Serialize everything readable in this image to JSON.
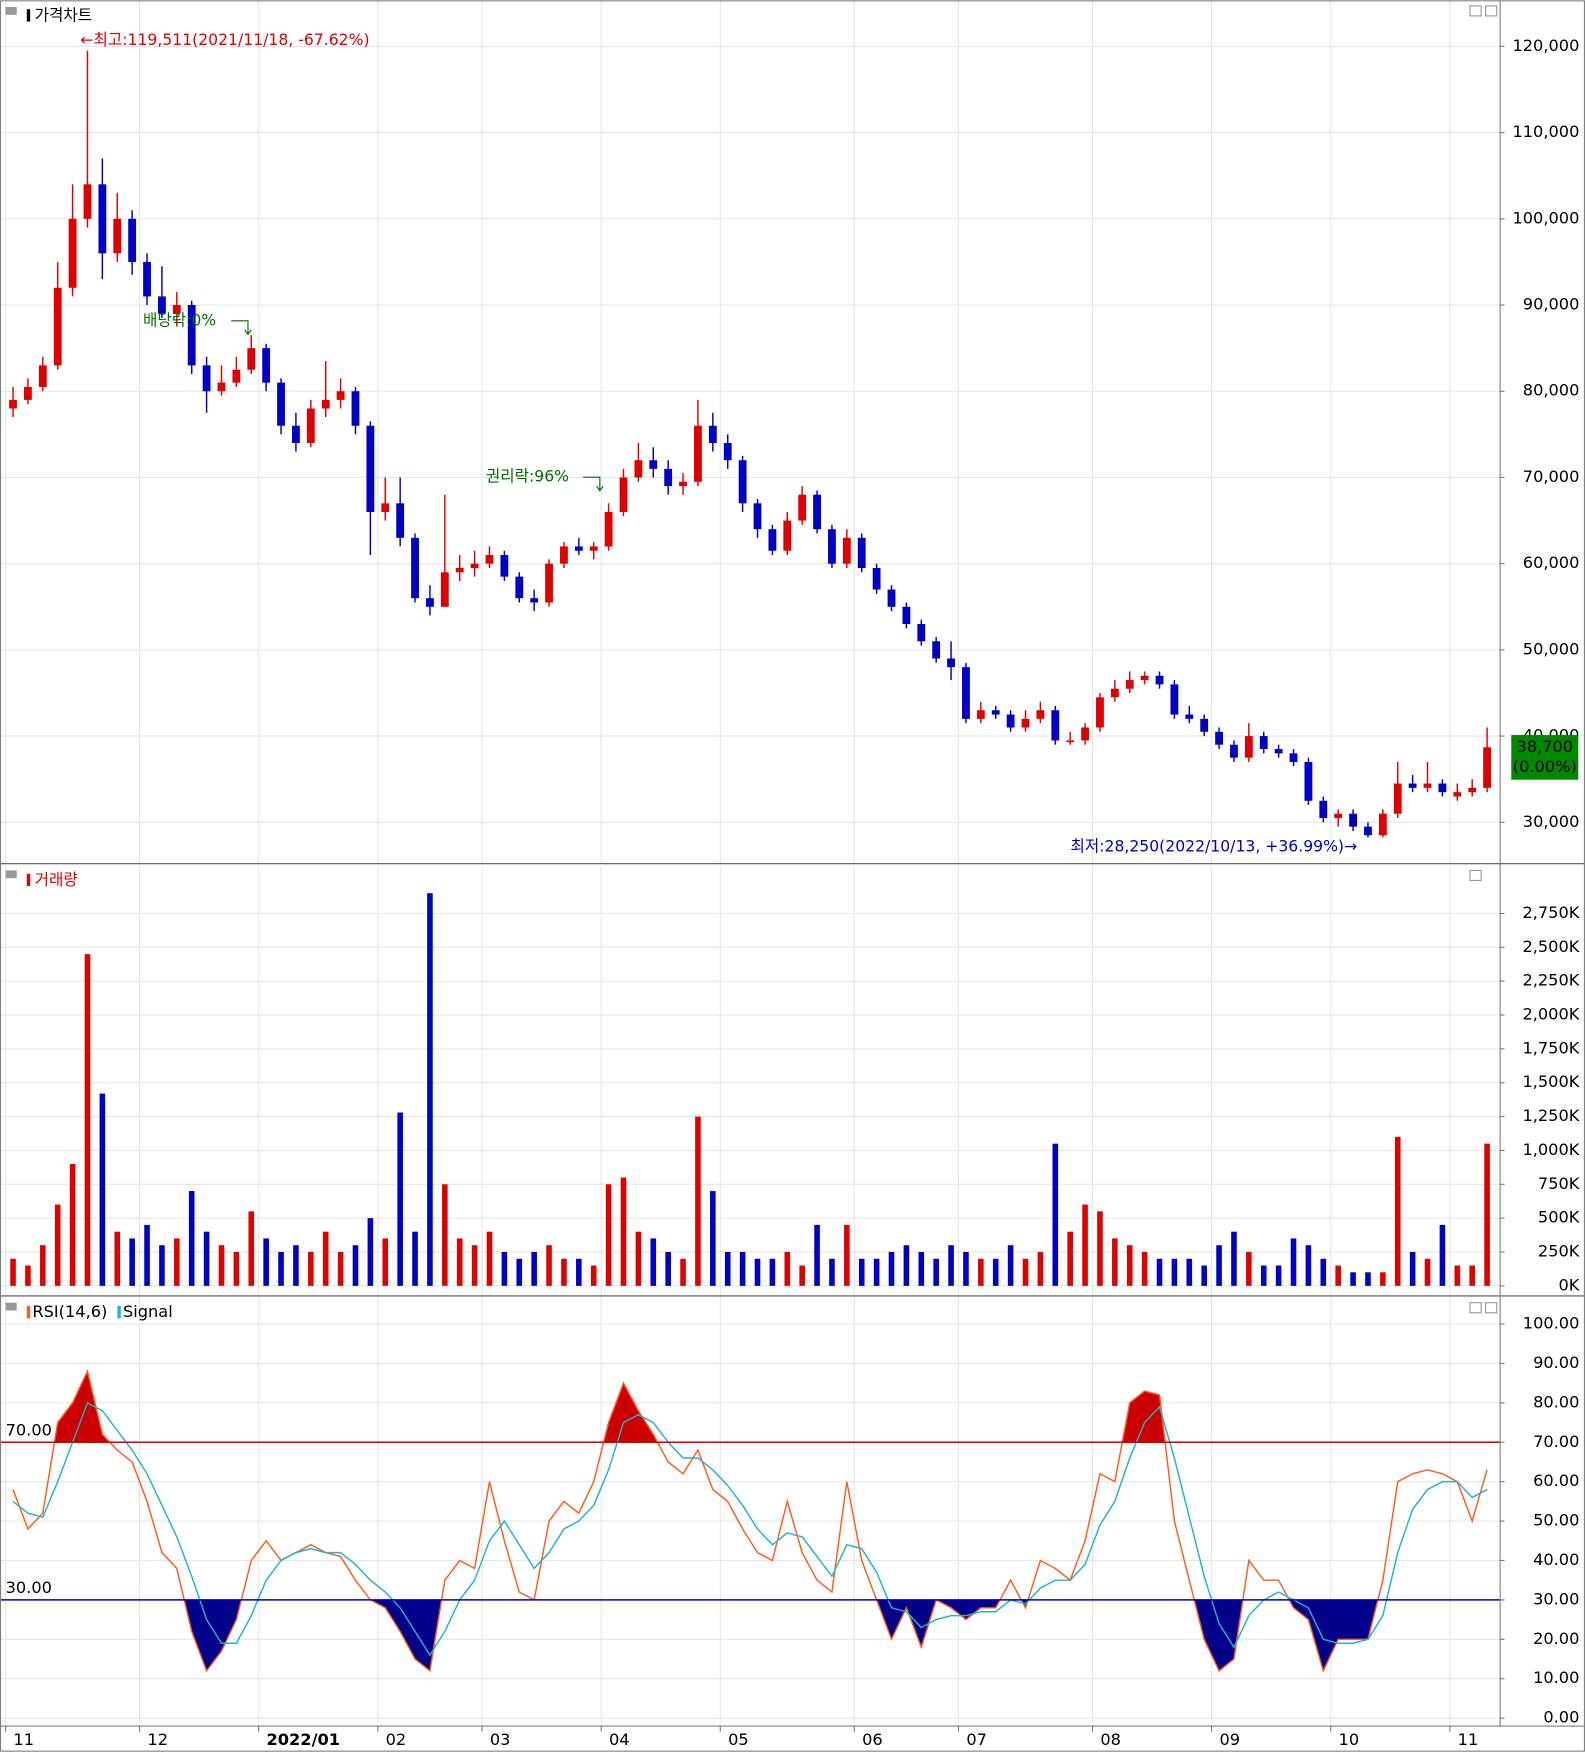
{
  "chart_data": [
    {
      "type": "candlestick",
      "title": "가격차트",
      "open": [
        78000,
        79000,
        80500,
        83000,
        92000,
        100000,
        104000,
        96000,
        100000,
        95000,
        91000,
        89000,
        90000,
        83000,
        80000,
        81000,
        82500,
        85000,
        81000,
        76000,
        74000,
        78000,
        79000,
        80000,
        76000,
        66000,
        67000,
        63000,
        56000,
        55000,
        59000,
        59500,
        60000,
        61000,
        58500,
        56000,
        55500,
        60000,
        62000,
        61500,
        62000,
        66000,
        70000,
        72000,
        71000,
        69000,
        69500,
        76000,
        74000,
        72000,
        67000,
        64000,
        61500,
        65000,
        68000,
        64000,
        60000,
        63000,
        59500,
        57000,
        55000,
        53000,
        51000,
        49000,
        48000,
        42000,
        43000,
        42500,
        41000,
        42000,
        43000,
        39500,
        39500,
        41000,
        44500,
        45500,
        46500,
        47000,
        46000,
        42500,
        42000,
        40500,
        39000,
        37500,
        40000,
        38500,
        38000,
        37000,
        32500,
        30500,
        31000,
        29500,
        28500,
        31000,
        34500,
        34000,
        34500,
        33000,
        33500,
        34000
      ],
      "high": [
        80500,
        81500,
        84000,
        95000,
        104000,
        119511,
        107000,
        103000,
        101000,
        96000,
        94500,
        91500,
        90500,
        84000,
        83000,
        84000,
        86500,
        85500,
        81500,
        77500,
        79000,
        83500,
        81500,
        80500,
        76500,
        70000,
        70000,
        63500,
        57500,
        68000,
        61000,
        61500,
        62000,
        61500,
        59000,
        57000,
        60500,
        62500,
        63000,
        62500,
        67000,
        71000,
        74000,
        73500,
        72000,
        70500,
        79000,
        77500,
        75000,
        72500,
        67500,
        64500,
        66000,
        69000,
        68500,
        64500,
        64000,
        63500,
        60000,
        57500,
        55500,
        53500,
        51500,
        51000,
        48500,
        44000,
        43500,
        43000,
        43000,
        44000,
        43500,
        40500,
        41500,
        45000,
        46500,
        47500,
        47500,
        47500,
        46500,
        43500,
        42500,
        41000,
        39500,
        41500,
        40500,
        39000,
        38500,
        37500,
        33000,
        31500,
        31500,
        30000,
        31500,
        37000,
        35500,
        37000,
        35000,
        34500,
        35000,
        41000
      ],
      "low": [
        77000,
        78500,
        80000,
        82500,
        91000,
        99000,
        93000,
        95000,
        93500,
        90000,
        88500,
        87500,
        82000,
        77500,
        79500,
        80500,
        82000,
        80000,
        75000,
        73000,
        73500,
        77000,
        78000,
        75000,
        61000,
        65000,
        62000,
        55500,
        54000,
        55000,
        58000,
        58500,
        59500,
        58000,
        55500,
        54500,
        55000,
        59500,
        61000,
        60500,
        61500,
        65500,
        69500,
        70000,
        68000,
        68000,
        69000,
        73000,
        71000,
        66000,
        63000,
        61000,
        61000,
        64500,
        63500,
        59500,
        59500,
        59000,
        56500,
        54500,
        52500,
        50500,
        48500,
        46500,
        41500,
        41500,
        42000,
        40500,
        40500,
        41500,
        39000,
        39000,
        39000,
        40500,
        44000,
        45000,
        46000,
        45500,
        42000,
        41500,
        40000,
        38500,
        37000,
        37000,
        38000,
        37500,
        36500,
        32000,
        30000,
        29500,
        29000,
        28250,
        28250,
        30500,
        33500,
        33500,
        33000,
        32500,
        33000,
        33500
      ],
      "close": [
        79000,
        80500,
        83000,
        92000,
        100000,
        104000,
        96000,
        100000,
        95000,
        91000,
        89000,
        90000,
        83000,
        80000,
        81000,
        82500,
        85000,
        81000,
        76000,
        74000,
        78000,
        79000,
        80000,
        76000,
        66000,
        67000,
        63000,
        56000,
        55000,
        59000,
        59500,
        60000,
        61000,
        58500,
        56000,
        55500,
        60000,
        62000,
        61500,
        62000,
        66000,
        70000,
        72000,
        71000,
        69000,
        69500,
        76000,
        74000,
        72000,
        67000,
        64000,
        61500,
        65000,
        68000,
        64000,
        60000,
        63000,
        59500,
        57000,
        55000,
        53000,
        51000,
        49000,
        48000,
        42000,
        43000,
        42500,
        41000,
        42000,
        43000,
        39500,
        39500,
        41000,
        44500,
        45500,
        46500,
        47000,
        46000,
        42500,
        42000,
        40500,
        39000,
        37500,
        40000,
        38500,
        38000,
        37000,
        32500,
        30500,
        31000,
        29500,
        28500,
        31000,
        34500,
        34000,
        34500,
        33500,
        33500,
        34000,
        38700
      ],
      "up_color": "#e00000",
      "down_color": "#0000c8",
      "ylim": [
        25200,
        124700
      ],
      "yticks": [
        {
          "value": 30000,
          "label": "30,000"
        },
        {
          "value": 40000,
          "label": "40,000"
        },
        {
          "value": 50000,
          "label": "50,000"
        },
        {
          "value": 60000,
          "label": "60,000"
        },
        {
          "value": 70000,
          "label": "70,000"
        },
        {
          "value": 80000,
          "label": "80,000"
        },
        {
          "value": 90000,
          "label": "90,000"
        },
        {
          "value": 100000,
          "label": "100,000"
        },
        {
          "value": 110000,
          "label": "110,000"
        },
        {
          "value": 120000,
          "label": "120,000"
        }
      ],
      "grid": true,
      "annotations": [
        {
          "text": "←최고:119,511(2021/11/18, -67.62%)",
          "color": "#e00000"
        },
        {
          "text": "배당락:0%",
          "color": "#007000"
        },
        {
          "text": "권리락:96%",
          "color": "#007000"
        },
        {
          "text": "최저:28,250(2022/10/13, +36.99%)→",
          "color": "#0000c8"
        }
      ],
      "last_price": {
        "value": 38700,
        "label": "38,700",
        "change": "(0.00%)",
        "color": "#008800"
      }
    },
    {
      "type": "bar",
      "title": "거래량",
      "values": [
        200,
        150,
        300,
        600,
        900,
        2450,
        1420,
        400,
        350,
        450,
        300,
        350,
        700,
        400,
        300,
        250,
        550,
        350,
        250,
        300,
        250,
        400,
        250,
        300,
        500,
        350,
        1280,
        400,
        2900,
        750,
        350,
        300,
        400,
        250,
        200,
        250,
        300,
        200,
        200,
        150,
        750,
        800,
        400,
        350,
        250,
        200,
        1250,
        700,
        250,
        250,
        200,
        200,
        250,
        150,
        450,
        200,
        450,
        200,
        200,
        250,
        300,
        250,
        200,
        300,
        250,
        200,
        200,
        300,
        200,
        250,
        1050,
        400,
        600,
        550,
        350,
        300,
        250,
        200,
        200,
        200,
        150,
        300,
        400,
        250,
        150,
        150,
        350,
        300,
        200,
        150,
        100,
        100,
        100,
        1100,
        250,
        200,
        450,
        150,
        150,
        1050
      ],
      "up_color": "#e00000",
      "down_color": "#0000c8",
      "ylim": [
        -75,
        3060
      ],
      "yticks": [
        {
          "value": 0,
          "label": "0K"
        },
        {
          "value": 250,
          "label": "250K"
        },
        {
          "value": 500,
          "label": "500K"
        },
        {
          "value": 750,
          "label": "750K"
        },
        {
          "value": 1000,
          "label": "1,000K"
        },
        {
          "value": 1250,
          "label": "1,250K"
        },
        {
          "value": 1500,
          "label": "1,500K"
        },
        {
          "value": 1750,
          "label": "1,750K"
        },
        {
          "value": 2000,
          "label": "2,000K"
        },
        {
          "value": 2250,
          "label": "2,250K"
        },
        {
          "value": 2500,
          "label": "2,500K"
        },
        {
          "value": 2750,
          "label": "2,750K"
        }
      ],
      "grid": true
    },
    {
      "type": "line",
      "categories": [
        "11",
        null,
        null,
        null,
        null,
        null,
        null,
        null,
        null,
        "12",
        null,
        null,
        null,
        null,
        null,
        null,
        null,
        "2022/01",
        null,
        null,
        null,
        null,
        null,
        null,
        null,
        "02",
        null,
        null,
        null,
        null,
        null,
        null,
        "03",
        null,
        null,
        null,
        null,
        null,
        null,
        null,
        "04",
        null,
        null,
        null,
        null,
        null,
        null,
        null,
        "05",
        null,
        null,
        null,
        null,
        null,
        null,
        null,
        null,
        "06",
        null,
        null,
        null,
        null,
        null,
        null,
        "07",
        null,
        null,
        null,
        null,
        null,
        null,
        null,
        null,
        "08",
        null,
        null,
        null,
        null,
        null,
        null,
        null,
        "09",
        null,
        null,
        null,
        null,
        null,
        null,
        null,
        "10",
        null,
        null,
        null,
        null,
        null,
        null,
        null,
        "11",
        null,
        null
      ],
      "series": [
        {
          "name": "RSI(14,6)",
          "color": "#ff5a1e",
          "values": [
            58,
            48,
            52,
            75,
            80,
            88,
            72,
            68,
            65,
            55,
            42,
            38,
            22,
            12,
            17,
            25,
            40,
            45,
            40,
            42,
            44,
            42,
            41,
            35,
            30,
            28,
            22,
            15,
            12,
            35,
            40,
            38,
            60,
            45,
            32,
            30,
            50,
            55,
            52,
            60,
            75,
            85,
            78,
            72,
            65,
            62,
            68,
            58,
            55,
            48,
            42,
            40,
            55,
            42,
            35,
            32,
            60,
            40,
            30,
            20,
            28,
            18,
            30,
            28,
            25,
            28,
            28,
            35,
            28,
            40,
            38,
            35,
            45,
            62,
            60,
            80,
            83,
            82,
            50,
            35,
            20,
            12,
            15,
            40,
            35,
            35,
            28,
            25,
            12,
            20,
            20,
            20,
            35,
            60,
            62,
            63,
            62,
            60,
            50,
            63
          ]
        },
        {
          "name": "Signal",
          "color": "#20b4c8",
          "values": [
            55,
            52,
            51,
            60,
            70,
            80,
            78,
            73,
            68,
            62,
            54,
            46,
            36,
            25,
            19,
            19,
            26,
            35,
            40,
            42,
            43,
            42,
            42,
            39,
            35,
            32,
            28,
            22,
            16,
            22,
            30,
            35,
            45,
            50,
            44,
            38,
            42,
            48,
            50,
            54,
            63,
            75,
            77,
            75,
            70,
            66,
            66,
            63,
            59,
            54,
            48,
            44,
            47,
            46,
            41,
            36,
            44,
            43,
            37,
            28,
            27,
            23,
            25,
            26,
            26,
            27,
            27,
            30,
            29,
            33,
            35,
            35,
            39,
            49,
            55,
            66,
            75,
            79,
            66,
            51,
            36,
            24,
            18,
            26,
            30,
            32,
            30,
            28,
            20,
            19,
            19,
            20,
            26,
            42,
            53,
            58,
            60,
            60,
            56,
            58
          ]
        }
      ],
      "thresholds": [
        {
          "value": 70,
          "label": "70.00",
          "color": "#d40000",
          "fill": "#cc0000",
          "side": "above"
        },
        {
          "value": 30,
          "label": "30.00",
          "color": "#0000cc",
          "fill": "#00008b",
          "side": "below"
        }
      ],
      "ylim": [
        -2,
        105.7
      ],
      "yticks": [
        {
          "value": 0,
          "label": "0.00"
        },
        {
          "value": 10,
          "label": "10.00"
        },
        {
          "value": 20,
          "label": "20.00"
        },
        {
          "value": 30,
          "label": "30.00"
        },
        {
          "value": 40,
          "label": "40.00"
        },
        {
          "value": 50,
          "label": "50.00"
        },
        {
          "value": 60,
          "label": "60.00"
        },
        {
          "value": 70,
          "label": "70.00"
        },
        {
          "value": 80,
          "label": "80.00"
        },
        {
          "value": 90,
          "label": "90.00"
        },
        {
          "value": 100,
          "label": "100.00"
        }
      ],
      "grid": true
    }
  ]
}
